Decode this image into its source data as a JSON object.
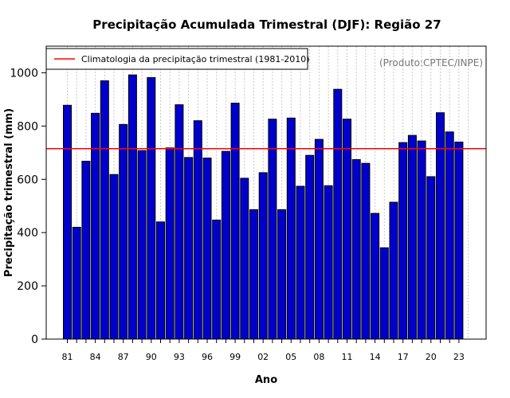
{
  "chart_data": {
    "type": "bar",
    "title": "Precipitação Acumulada Trimestral (DJF): Região 27",
    "xlabel": "Ano",
    "ylabel": "Precipitação trimestral (mm)",
    "credit": "(Produto:CPTEC/INPE)",
    "legend": {
      "label": "Climatologia da precipitação trimestral (1981-2010)",
      "position": "top-left"
    },
    "ylim": [
      0,
      1100
    ],
    "yticks": [
      0,
      200,
      400,
      600,
      800,
      1000
    ],
    "climatology": 715,
    "grid": "vertical dotted",
    "categories": [
      "81",
      "82",
      "83",
      "84",
      "85",
      "86",
      "87",
      "88",
      "89",
      "90",
      "91",
      "92",
      "93",
      "94",
      "95",
      "96",
      "97",
      "98",
      "99",
      "00",
      "01",
      "02",
      "03",
      "04",
      "05",
      "06",
      "07",
      "08",
      "09",
      "10",
      "11",
      "12",
      "13",
      "14",
      "15",
      "16",
      "17",
      "18",
      "19",
      "20",
      "21",
      "22",
      "23"
    ],
    "xtick_labels": [
      "81",
      "84",
      "87",
      "90",
      "93",
      "96",
      "99",
      "02",
      "05",
      "08",
      "11",
      "14",
      "17",
      "20",
      "23"
    ],
    "values": [
      878,
      420,
      668,
      848,
      970,
      618,
      806,
      992,
      708,
      982,
      440,
      718,
      880,
      682,
      820,
      680,
      447,
      705,
      886,
      604,
      486,
      625,
      826,
      486,
      830,
      574,
      690,
      750,
      576,
      938,
      826,
      674,
      660,
      472,
      343,
      514,
      738,
      765,
      744,
      610,
      850,
      778,
      740
    ],
    "colors": {
      "bar": "#0000CD",
      "line": "#FF0000",
      "grid": "#C8C8C8",
      "credit": "#777777"
    }
  }
}
